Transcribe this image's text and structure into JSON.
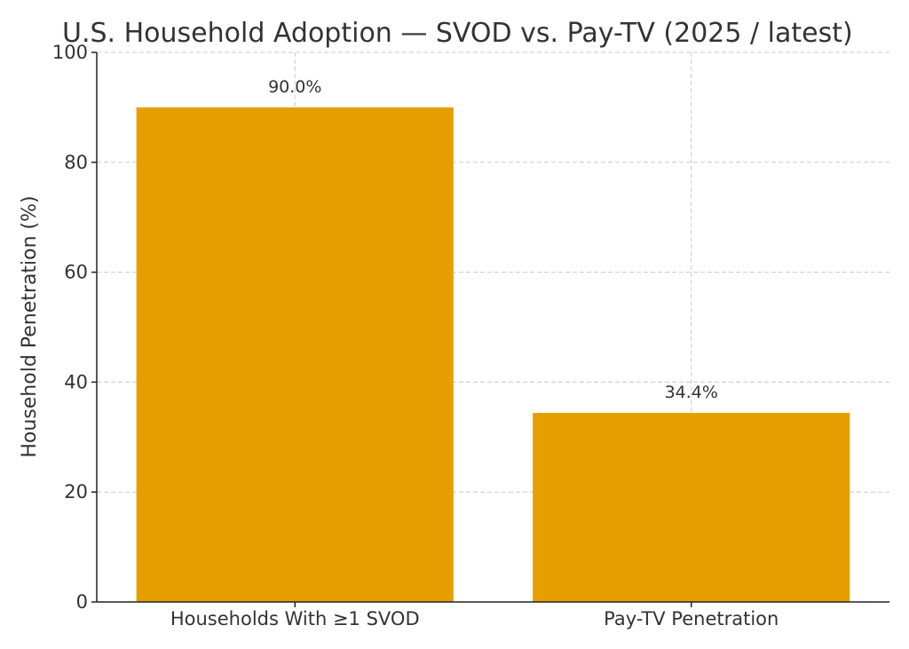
{
  "chart_data": {
    "type": "bar",
    "title": "U.S. Household Adoption — SVOD vs. Pay-TV (2025 / latest)",
    "xlabel": "",
    "ylabel": "Household Penetration (%)",
    "categories": [
      "Households With ≥1 SVOD",
      "Pay-TV Penetration"
    ],
    "values": [
      90.0,
      34.4
    ],
    "data_labels": [
      "90.0%",
      "34.4%"
    ],
    "ylim": [
      0,
      100
    ],
    "yticks": [
      0,
      20,
      40,
      60,
      80,
      100
    ],
    "grid": true,
    "legend": "none",
    "bar_color": "#E5A000"
  }
}
